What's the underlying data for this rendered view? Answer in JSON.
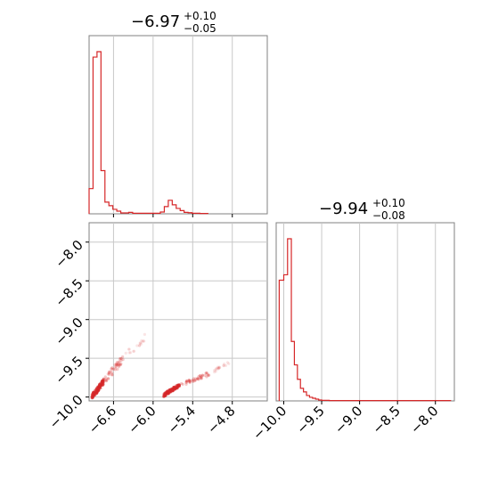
{
  "chart_data": [
    {
      "type": "histogram",
      "panel": "top-left",
      "title": {
        "main": "−6.97",
        "sup": "+0.10",
        "sub": "−0.05"
      },
      "xlim": [
        -6.97,
        -4.27
      ],
      "xticks": [
        -6.6,
        -6.0,
        -5.4,
        -4.8
      ],
      "grid": true,
      "color": "#d62728",
      "bins": [
        {
          "x0": -6.97,
          "x1": -6.91,
          "count": 0.14
        },
        {
          "x0": -6.91,
          "x1": -6.85,
          "count": 0.87
        },
        {
          "x0": -6.85,
          "x1": -6.79,
          "count": 0.9
        },
        {
          "x0": -6.79,
          "x1": -6.73,
          "count": 0.24
        },
        {
          "x0": -6.73,
          "x1": -6.67,
          "count": 0.065
        },
        {
          "x0": -6.67,
          "x1": -6.61,
          "count": 0.045
        },
        {
          "x0": -6.61,
          "x1": -6.55,
          "count": 0.025
        },
        {
          "x0": -6.55,
          "x1": -6.49,
          "count": 0.015
        },
        {
          "x0": -6.49,
          "x1": -6.43,
          "count": 0.005
        },
        {
          "x0": -6.43,
          "x1": -6.37,
          "count": 0.005
        },
        {
          "x0": -6.37,
          "x1": -6.31,
          "count": 0.008
        },
        {
          "x0": -6.31,
          "x1": -6.25,
          "count": 0.003
        },
        {
          "x0": -6.25,
          "x1": -6.19,
          "count": 0.003
        },
        {
          "x0": -6.19,
          "x1": -6.13,
          "count": 0.003
        },
        {
          "x0": -6.13,
          "x1": -6.07,
          "count": 0.003
        },
        {
          "x0": -6.07,
          "x1": -6.01,
          "count": 0.003
        },
        {
          "x0": -6.01,
          "x1": -5.95,
          "count": 0.003
        },
        {
          "x0": -5.95,
          "x1": -5.89,
          "count": 0.003
        },
        {
          "x0": -5.89,
          "x1": -5.83,
          "count": 0.01
        },
        {
          "x0": -5.83,
          "x1": -5.77,
          "count": 0.04
        },
        {
          "x0": -5.77,
          "x1": -5.71,
          "count": 0.075
        },
        {
          "x0": -5.71,
          "x1": -5.65,
          "count": 0.05
        },
        {
          "x0": -5.65,
          "x1": -5.59,
          "count": 0.03
        },
        {
          "x0": -5.59,
          "x1": -5.53,
          "count": 0.018
        },
        {
          "x0": -5.53,
          "x1": -5.47,
          "count": 0.008
        },
        {
          "x0": -5.47,
          "x1": -5.41,
          "count": 0.006
        },
        {
          "x0": -5.41,
          "x1": -5.35,
          "count": 0.003
        },
        {
          "x0": -5.35,
          "x1": -5.29,
          "count": 0.003
        },
        {
          "x0": -5.29,
          "x1": -5.23,
          "count": 0.002
        },
        {
          "x0": -5.23,
          "x1": -5.17,
          "count": 0.002
        }
      ]
    },
    {
      "type": "scatter",
      "panel": "bottom-left",
      "xlim": [
        -6.97,
        -4.27
      ],
      "ylim": [
        -10.05,
        -7.75
      ],
      "xticks": [
        -6.6,
        -6.0,
        -5.4,
        -4.8
      ],
      "yticks": [
        -8.0,
        -8.5,
        -9.0,
        -9.5,
        -10.0
      ],
      "grid": true,
      "color": "#d62728",
      "clusters": [
        {
          "x": [
            -6.93,
            -6.75
          ],
          "y": [
            -10.0,
            -9.8
          ],
          "density": "high"
        },
        {
          "x": [
            -6.75,
            -6.45
          ],
          "y": [
            -9.8,
            -9.5
          ],
          "density": "medium"
        },
        {
          "x": [
            -6.45,
            -6.1
          ],
          "y": [
            -9.5,
            -9.2
          ],
          "density": "low"
        },
        {
          "x": [
            -5.85,
            -5.6
          ],
          "y": [
            -9.98,
            -9.85
          ],
          "density": "high"
        },
        {
          "x": [
            -5.6,
            -5.15
          ],
          "y": [
            -9.85,
            -9.7
          ],
          "density": "medium"
        },
        {
          "x": [
            -5.15,
            -4.85
          ],
          "y": [
            -9.7,
            -9.55
          ],
          "density": "low"
        }
      ]
    },
    {
      "type": "histogram",
      "panel": "bottom-right",
      "title": {
        "main": "−9.94",
        "sup": "+0.10",
        "sub": "−0.08"
      },
      "xlim": [
        -10.1,
        -7.75
      ],
      "xticks": [
        -10.0,
        -9.5,
        -9.0,
        -8.5,
        -8.0
      ],
      "grid": true,
      "color": "#d62728",
      "bins": [
        {
          "x0": -10.06,
          "x1": -10.0,
          "count": 0.67
        },
        {
          "x0": -10.0,
          "x1": -9.95,
          "count": 0.7
        },
        {
          "x0": -9.95,
          "x1": -9.9,
          "count": 0.9
        },
        {
          "x0": -9.9,
          "x1": -9.86,
          "count": 0.33
        },
        {
          "x0": -9.86,
          "x1": -9.82,
          "count": 0.2
        },
        {
          "x0": -9.82,
          "x1": -9.78,
          "count": 0.12
        },
        {
          "x0": -9.78,
          "x1": -9.74,
          "count": 0.07
        },
        {
          "x0": -9.74,
          "x1": -9.7,
          "count": 0.05
        },
        {
          "x0": -9.7,
          "x1": -9.66,
          "count": 0.03
        },
        {
          "x0": -9.66,
          "x1": -9.62,
          "count": 0.02
        },
        {
          "x0": -9.62,
          "x1": -9.58,
          "count": 0.015
        },
        {
          "x0": -9.58,
          "x1": -9.54,
          "count": 0.01
        },
        {
          "x0": -9.54,
          "x1": -9.5,
          "count": 0.005
        },
        {
          "x0": -9.5,
          "x1": -9.4,
          "count": 0.003
        },
        {
          "x0": -9.4,
          "x1": -7.8,
          "count": 0.002
        }
      ]
    }
  ]
}
